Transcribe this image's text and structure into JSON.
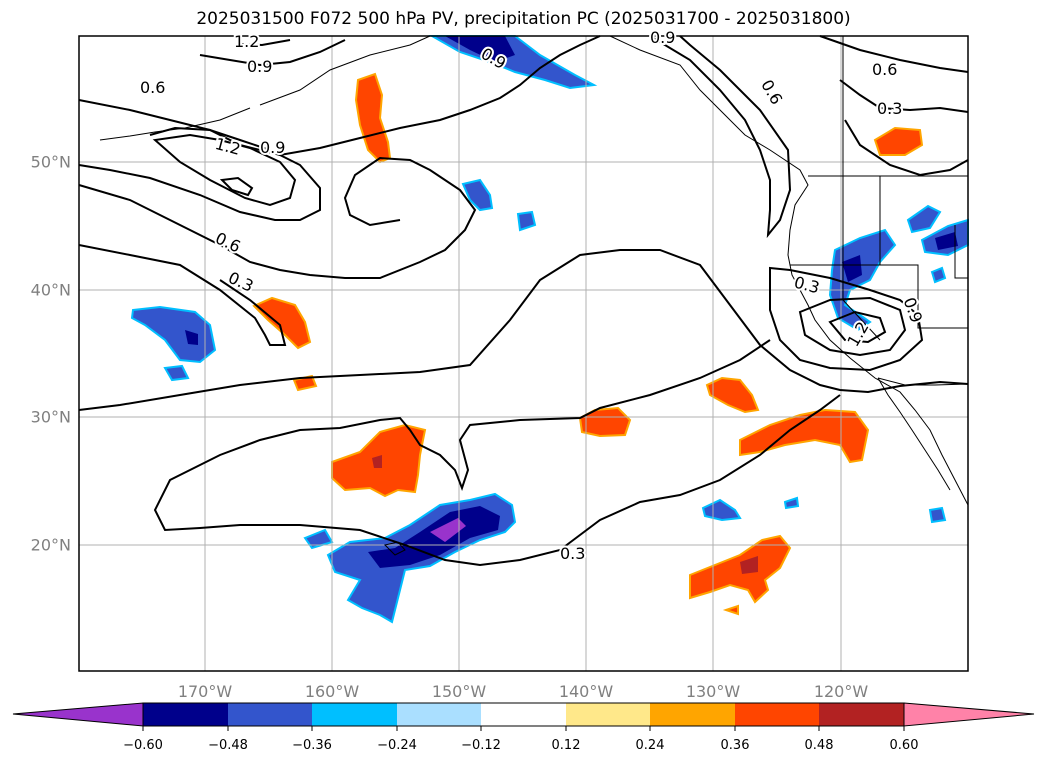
{
  "title": "2025031500 F072 500 hPa PV, precipitation PC (2025031700 - 2025031800)",
  "latitude_labels": [
    "50°N",
    "40°N",
    "30°N",
    "20°N"
  ],
  "longitude_labels": [
    "170°W",
    "160°W",
    "150°W",
    "140°W",
    "130°W",
    "120°W"
  ],
  "contour_labels": [
    "1.2",
    "0.9",
    "0.9",
    "0.6",
    "1.2",
    "0.9",
    "0.6",
    "0.3",
    "0.6",
    "0.3",
    "0.6",
    "0.9",
    "1.2",
    "0.3",
    "0.3",
    "0.9"
  ],
  "colorbar": {
    "tick_labels": [
      "−0.60",
      "−0.48",
      "−0.36",
      "−0.24",
      "−0.12",
      "0.12",
      "0.24",
      "0.36",
      "0.48",
      "0.60"
    ],
    "colors": [
      "#9933cc",
      "#00008b",
      "#3355cc",
      "#00bfff",
      "#aadfff",
      "#ffffff",
      "#ffe88a",
      "#ffa500",
      "#ff4500",
      "#b22222",
      "#ff82a8"
    ]
  },
  "colors": {
    "grid": "#b0b0b0",
    "coastline": "#000000",
    "contour": "#000000",
    "axis_label": "#808080"
  }
}
